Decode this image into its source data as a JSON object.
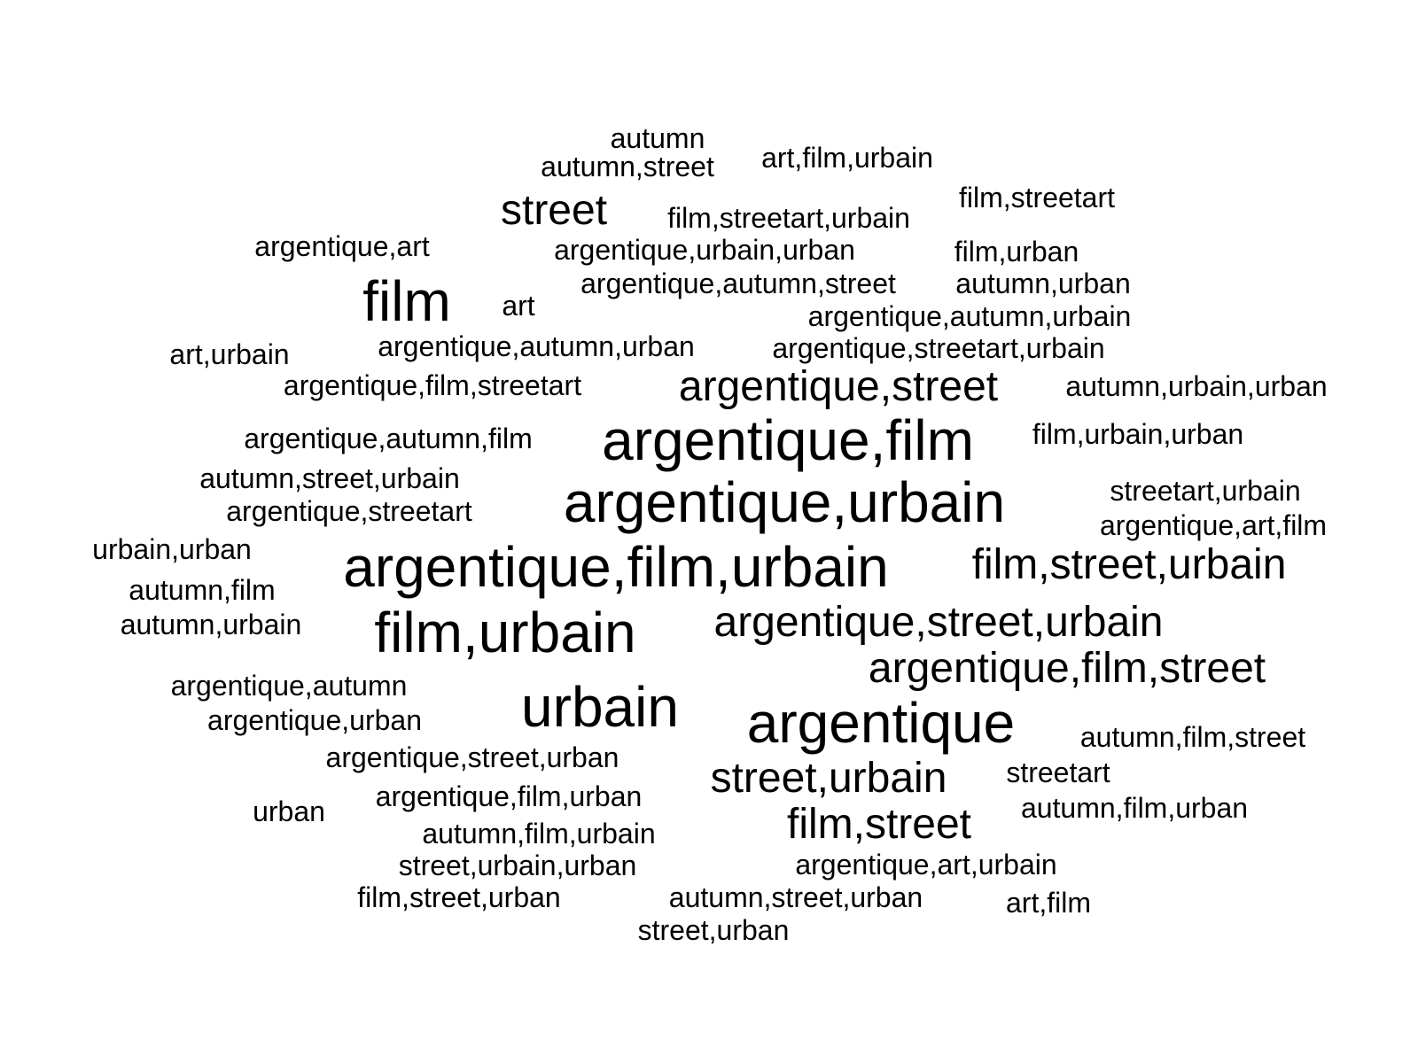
{
  "text_color": "#000000",
  "background_color": "#ffffff",
  "words": [
    "autumn",
    "autumn,street",
    "art,film,urbain",
    "street",
    "film,streetart,urbain",
    "film,streetart",
    "argentique,art",
    "argentique,urbain,urban",
    "film,urban",
    "film",
    "art",
    "argentique,autumn,street",
    "autumn,urban",
    "argentique,autumn,urbain",
    "art,urbain",
    "argentique,autumn,urban",
    "argentique,streetart,urbain",
    "argentique,film,streetart",
    "argentique,street",
    "autumn,urbain,urban",
    "argentique,autumn,film",
    "argentique,film",
    "film,urbain,urban",
    "autumn,street,urbain",
    "argentique,urbain",
    "streetart,urbain",
    "argentique,streetart",
    "argentique,art,film",
    "urbain,urban",
    "argentique,film,urbain",
    "film,street,urbain",
    "autumn,film",
    "autumn,urbain",
    "film,urbain",
    "argentique,street,urbain",
    "argentique,film,street",
    "argentique,autumn",
    "urbain",
    "argentique",
    "argentique,urban",
    "autumn,film,street",
    "argentique,street,urban",
    "street,urbain",
    "streetart",
    "argentique,film,urban",
    "urban",
    "autumn,film,urban",
    "film,street",
    "autumn,film,urbain",
    "street,urbain,urban",
    "argentique,art,urbain",
    "film,street,urban",
    "autumn,street,urban",
    "art,film",
    "street,urban"
  ]
}
